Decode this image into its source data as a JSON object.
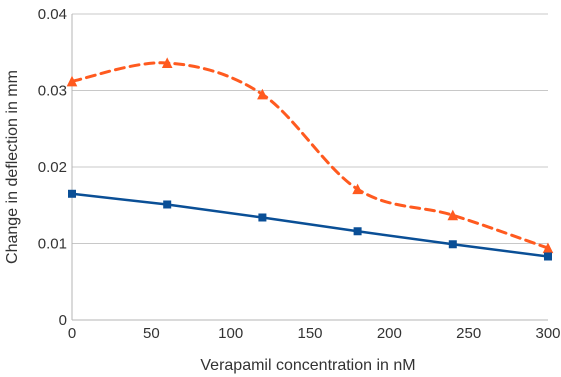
{
  "chart_data": {
    "type": "line",
    "title": "",
    "xlabel": "Verapamil concentration in nM",
    "ylabel": "Change in deflection in mm",
    "xlim": [
      0,
      300
    ],
    "ylim": [
      0,
      0.04
    ],
    "grid": {
      "horizontal": true,
      "vertical": false,
      "color": "#c8c8c8"
    },
    "legend": "none",
    "x_ticks": [
      0,
      50,
      100,
      150,
      200,
      250,
      300
    ],
    "x_tick_labels": [
      "0",
      "50",
      "100",
      "150",
      "200",
      "250",
      "300"
    ],
    "y_ticks": [
      0,
      0.01,
      0.02,
      0.03,
      0.04
    ],
    "y_tick_labels": [
      "0",
      "0.01",
      "0.02",
      "0.03",
      "0.04"
    ],
    "series": [
      {
        "color": "#ff5a1f",
        "line_style": "dashed",
        "smooth": true,
        "marker": "triangle",
        "x": [
          0,
          60,
          120,
          180,
          240,
          300
        ],
        "y": [
          0.0312,
          0.0336,
          0.0295,
          0.0171,
          0.0137,
          0.0094
        ]
      },
      {
        "color": "#0a4f96",
        "line_style": "solid",
        "smooth": false,
        "marker": "square",
        "x": [
          0,
          60,
          120,
          180,
          240,
          300
        ],
        "y": [
          0.0165,
          0.0151,
          0.0134,
          0.0116,
          0.0099,
          0.0083
        ]
      }
    ]
  }
}
